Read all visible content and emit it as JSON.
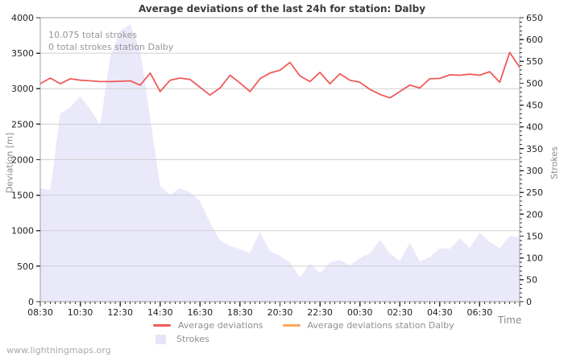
{
  "title": "Average deviations of the last 24h for station: Dalby",
  "annotations": {
    "total_strokes": "10.075 total strokes",
    "station_strokes": "0 total strokes station Dalby"
  },
  "watermark": "www.lightningmaps.org",
  "axis_labels": {
    "left": "Deviation [m]",
    "right": "Strokes",
    "x": "Time"
  },
  "legend": [
    {
      "label": "Average deviations",
      "swatch": "line",
      "color": "#f05a5a"
    },
    {
      "label": "Average deviations station Dalby",
      "swatch": "line",
      "color": "#fba55c"
    },
    {
      "label": "Strokes",
      "swatch": "box",
      "color": "#e5e5f8"
    }
  ],
  "colors": {
    "deviation_line": "#f05a5a",
    "station_line": "#fba55c",
    "strokes_area": "#e5e5f8",
    "grid": "#cccccc",
    "frame": "#a0a0a0",
    "tick": "#333333"
  },
  "chart_data": {
    "type": "line",
    "x": [
      "08:30",
      "09:00",
      "09:30",
      "10:00",
      "10:30",
      "11:00",
      "11:30",
      "12:00",
      "12:30",
      "13:00",
      "13:30",
      "14:00",
      "14:30",
      "15:00",
      "15:30",
      "16:00",
      "16:30",
      "17:00",
      "17:30",
      "18:00",
      "18:30",
      "19:00",
      "19:30",
      "20:00",
      "20:30",
      "21:00",
      "21:30",
      "22:00",
      "22:30",
      "23:00",
      "23:30",
      "00:00",
      "00:30",
      "01:00",
      "01:30",
      "02:00",
      "02:30",
      "03:00",
      "03:30",
      "04:00",
      "04:30",
      "05:00",
      "05:30",
      "06:00",
      "06:30",
      "07:00",
      "07:30",
      "08:00",
      "08:30"
    ],
    "x_tick_labels": [
      "08:30",
      "10:30",
      "12:30",
      "14:30",
      "16:30",
      "18:30",
      "20:30",
      "22:30",
      "00:30",
      "02:30",
      "04:30",
      "06:30"
    ],
    "series": [
      {
        "name": "Average deviations",
        "axis": "left",
        "type": "line",
        "values": [
          3070,
          3150,
          3070,
          3140,
          3120,
          3110,
          3100,
          3100,
          3105,
          3110,
          3050,
          3220,
          2960,
          3120,
          3150,
          3130,
          3020,
          2910,
          3010,
          3190,
          3080,
          2960,
          3140,
          3220,
          3260,
          3370,
          3180,
          3100,
          3230,
          3070,
          3210,
          3120,
          3090,
          2990,
          2920,
          2870,
          2960,
          3050,
          3010,
          3140,
          3145,
          3195,
          3190,
          3205,
          3190,
          3240,
          3090,
          3510,
          3300
        ]
      },
      {
        "name": "Average deviations station Dalby",
        "axis": "left",
        "type": "line",
        "values": []
      },
      {
        "name": "Strokes",
        "axis": "right",
        "type": "area",
        "values": [
          260,
          255,
          430,
          445,
          470,
          440,
          405,
          560,
          620,
          635,
          575,
          420,
          265,
          245,
          260,
          250,
          230,
          180,
          140,
          128,
          120,
          112,
          160,
          115,
          105,
          90,
          56,
          87,
          65,
          90,
          95,
          83,
          100,
          110,
          142,
          110,
          93,
          135,
          92,
          102,
          122,
          121,
          145,
          123,
          158,
          137,
          122,
          150,
          148
        ]
      }
    ],
    "y_left": {
      "label": "Deviation [m]",
      "min": 0,
      "max": 4000,
      "tick_step": 500
    },
    "y_right": {
      "label": "Strokes",
      "min": 0,
      "max": 650,
      "tick_step": 50,
      "minor_step": 10
    },
    "grid": "horizontal",
    "legend_position": "bottom"
  }
}
